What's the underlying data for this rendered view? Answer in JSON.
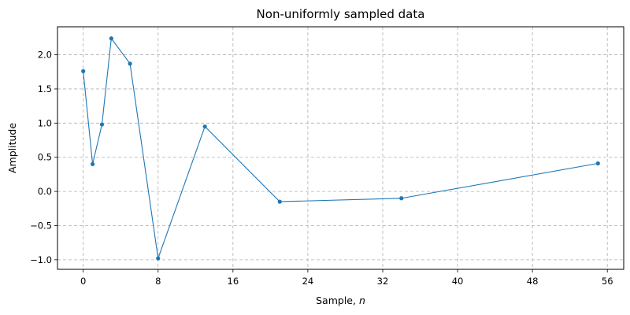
{
  "chart_data": {
    "type": "line",
    "title": "Non-uniformly sampled data",
    "xlabel": "Sample, n",
    "xlabel_prefix": "Sample, ",
    "xlabel_var": "n",
    "ylabel": "Amplitude",
    "xlim": [
      -2.75,
      57.75
    ],
    "ylim": [
      -1.14,
      2.41
    ],
    "xticks": [
      0,
      8,
      16,
      24,
      32,
      40,
      48,
      56
    ],
    "yticks": [
      -1.0,
      -0.5,
      0.0,
      0.5,
      1.0,
      1.5,
      2.0
    ],
    "ytick_labels": [
      "−1.0",
      "−0.5",
      "0.0",
      "0.5",
      "1.0",
      "1.5",
      "2.0"
    ],
    "grid": true,
    "grid_style": "dashed",
    "series": [
      {
        "color": "#1f77b4",
        "marker": "circle",
        "x": [
          0,
          1,
          2,
          3,
          5,
          8,
          13,
          21,
          34,
          55
        ],
        "y": [
          1.76,
          0.4,
          0.98,
          2.24,
          1.87,
          -0.98,
          0.95,
          -0.15,
          -0.1,
          0.41
        ]
      }
    ]
  }
}
